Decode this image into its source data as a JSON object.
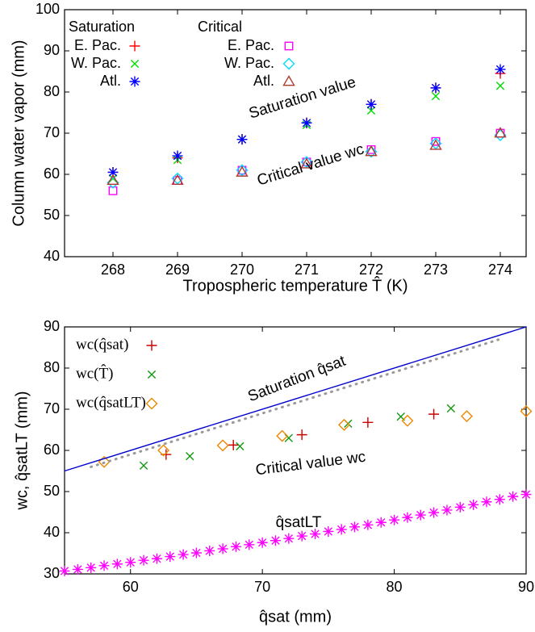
{
  "chart_data": [
    {
      "type": "scatter",
      "xlabel": "Tropospheric temperature T̂ (K)",
      "ylabel": "Column water vapor  (mm)",
      "x": [
        268,
        269,
        270,
        271,
        272,
        273,
        274
      ],
      "xlim": [
        267.25,
        274.4
      ],
      "xticks": [
        268,
        269,
        270,
        271,
        272,
        273,
        274
      ],
      "ylim": [
        40,
        100
      ],
      "yticks": [
        40,
        50,
        60,
        70,
        80,
        90,
        100
      ],
      "legend_titles": [
        "Saturation",
        "Critical"
      ],
      "annotations": [
        "Saturation value",
        "Critical value wc"
      ],
      "series": [
        {
          "name": "E. Pac.",
          "color": "#ff0000",
          "marker": "+",
          "values": [
            60.5,
            64,
            68.5,
            72.5,
            77,
            81,
            84.5
          ]
        },
        {
          "name": "W. Pac.",
          "color": "#00dd00",
          "marker": "x",
          "values": [
            59,
            63.5,
            68.5,
            72,
            75.5,
            79,
            81.5
          ]
        },
        {
          "name": "Atl.",
          "color": "#0000ff",
          "marker": "*",
          "values": [
            60.5,
            64.5,
            68.5,
            72.5,
            77,
            81,
            85.5
          ]
        },
        {
          "name": "E. Pac.",
          "color": "#ff00ff",
          "marker": "square",
          "values": [
            56,
            58.5,
            61,
            63,
            66,
            68,
            70
          ]
        },
        {
          "name": "W. Pac.",
          "color": "#00ddff",
          "marker": "diamond",
          "values": [
            58,
            59,
            61,
            63,
            65.5,
            67.5,
            69.5
          ]
        },
        {
          "name": "Atl.",
          "color": "#b03a2e",
          "marker": "triangle",
          "values": [
            58.5,
            58.5,
            60.5,
            62.5,
            65.5,
            67,
            70
          ]
        }
      ]
    },
    {
      "type": "scatter",
      "xlabel": "q̂sat (mm)",
      "ylabel": "wc, q̂satLT (mm)",
      "xlim": [
        55,
        90
      ],
      "xticks": [
        60,
        70,
        80,
        90
      ],
      "ylim": [
        30,
        90
      ],
      "yticks": [
        30,
        40,
        50,
        60,
        70,
        80,
        90
      ],
      "annotations": [
        "Saturation q̂sat",
        "Critical value wc",
        "q̂satLT"
      ],
      "series": [
        {
          "name": "wc(q̂sat)",
          "color": "#cc0000",
          "marker": "+",
          "x": [
            62.7,
            67.8,
            73,
            78,
            83
          ],
          "values": [
            59,
            61.3,
            63.8,
            66.8,
            68.8
          ]
        },
        {
          "name": "wc(T̂)",
          "color": "#119911",
          "marker": "x",
          "x": [
            61,
            64.5,
            68.3,
            72,
            76.5,
            80.5,
            84.3
          ],
          "values": [
            56.3,
            58.6,
            61,
            63,
            66.5,
            68.2,
            70.2
          ]
        },
        {
          "name": "wc(q̂satLT)",
          "color": "#ee8800",
          "marker": "diamond",
          "x": [
            58,
            62.5,
            67,
            71.5,
            76.2,
            81,
            85.5,
            90
          ],
          "values": [
            57.2,
            60,
            61.2,
            63.5,
            66.2,
            67.2,
            68.3,
            69.5
          ]
        },
        {
          "color": "#0000cc",
          "line": "solid",
          "x": [
            55,
            90
          ],
          "values": [
            55,
            90
          ]
        },
        {
          "color": "#999999",
          "line": "dotted",
          "x": [
            57,
            88
          ],
          "values": [
            56,
            87
          ]
        },
        {
          "color": "#ff00ff",
          "marker": "*",
          "x": [
            55,
            56,
            57,
            58,
            59,
            60,
            61,
            62,
            63,
            64,
            65,
            66,
            67,
            68,
            69,
            70,
            71,
            72,
            73,
            74,
            75,
            76,
            77,
            78,
            79,
            80,
            81,
            82,
            83,
            84,
            85,
            86,
            87,
            88,
            89,
            90
          ],
          "values": [
            30.7,
            31.1,
            31.5,
            32.0,
            32.4,
            32.8,
            33.3,
            33.7,
            34.2,
            34.7,
            35.1,
            35.6,
            36.1,
            36.6,
            37.1,
            37.6,
            38.1,
            38.6,
            39.2,
            39.7,
            40.3,
            40.8,
            41.4,
            41.9,
            42.5,
            43.1,
            43.7,
            44.3,
            44.9,
            45.5,
            46.2,
            46.8,
            47.5,
            48.1,
            48.8,
            49.3
          ]
        }
      ]
    }
  ]
}
